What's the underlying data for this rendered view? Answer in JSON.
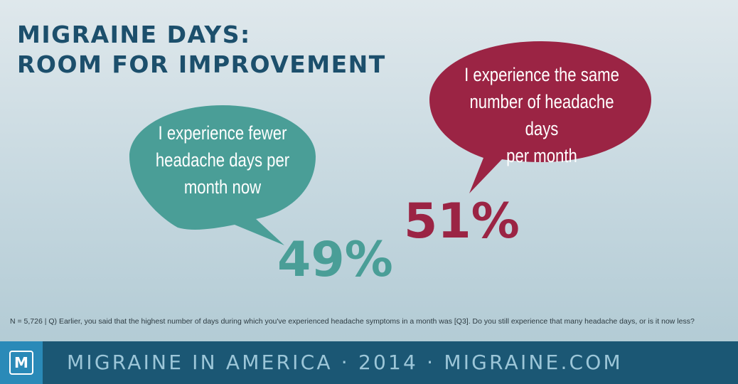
{
  "title": {
    "line1": "MIGRAINE DAYS:",
    "line2": "ROOM FOR IMPROVEMENT"
  },
  "chart_data": {
    "type": "pie",
    "categories": [
      "I experience fewer headache days per month now",
      "I experience the same number of headache days per month"
    ],
    "values": [
      49,
      51
    ],
    "unit": "%",
    "colors": [
      "#4a9e97",
      "#9b2444"
    ]
  },
  "bubbles": {
    "fewer": {
      "line1": "I experience fewer",
      "line2": "headache days per",
      "line3": "month now",
      "value_label": "49%"
    },
    "same": {
      "line1": "I experience the same",
      "line2": "number of headache days",
      "line3": "per month",
      "value_label": "51%"
    }
  },
  "footnote": "N = 5,726  |  Q) Earlier, you said that the highest number of days during which you've experienced headache symptoms in a month was [Q3]. Do you still experience that many headache  days, or is it now less?",
  "footer": {
    "logo_letter": "M",
    "text": "MIGRAINE IN AMERICA · 2014 · MIGRAINE.COM"
  },
  "colors": {
    "title": "#1c4f6c",
    "teal": "#4a9e97",
    "red": "#9b2444",
    "footer_bg": "#1b5774",
    "logo_bg": "#2a8ab8",
    "footer_text": "#9cc6d8"
  }
}
